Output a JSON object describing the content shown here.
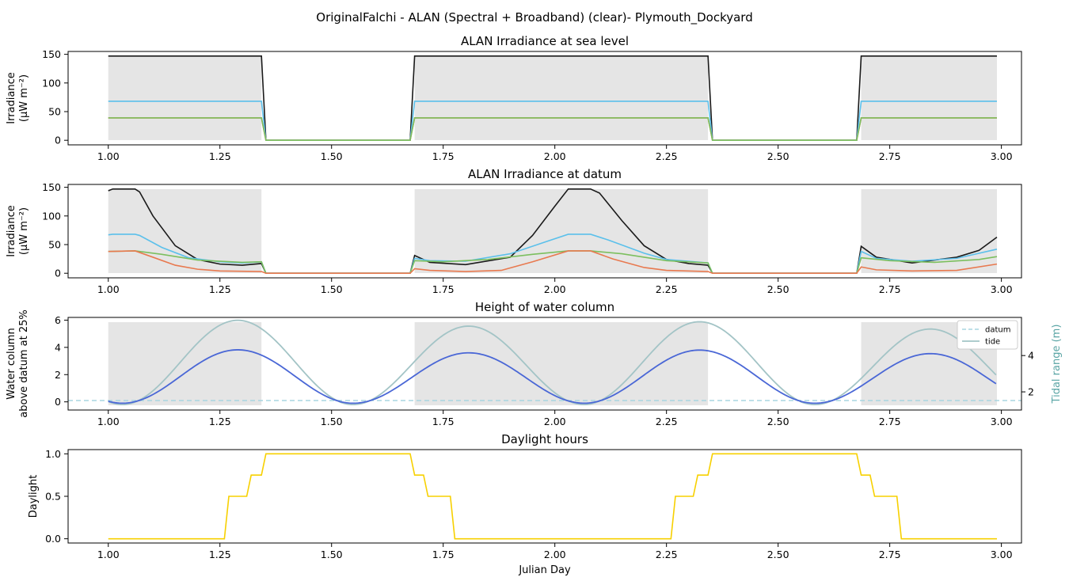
{
  "figure_title": "OriginalFalchi - ALAN (Spectral + Broadband) (clear)- Plymouth_Dockyard",
  "colors": {
    "black": "#1a1a1a",
    "blue": "#5bc0eb",
    "green": "#7cbf5f",
    "orange": "#e8794f",
    "water": "#4a67d6",
    "tide": "#a3c4c6",
    "datum": "#a8d5e0",
    "daylight": "#f7d000",
    "shade": "#e5e5e5",
    "right_axis": "#5aa5a5"
  },
  "chart_data": [
    {
      "type": "line",
      "title": "ALAN Irradiance at sea level",
      "ylabel_line1": "Irradiance",
      "ylabel_line2": "(μW m⁻²)",
      "xlim": [
        0.91,
        3.045
      ],
      "ylim": [
        -8,
        155
      ],
      "xticks": [
        "1.00",
        "1.25",
        "1.50",
        "1.75",
        "2.00",
        "2.25",
        "2.50",
        "2.75",
        "3.00"
      ],
      "xtick_values": [
        1.0,
        1.25,
        1.5,
        1.75,
        2.0,
        2.25,
        2.5,
        2.75,
        3.0
      ],
      "yticks": [
        "0",
        "50",
        "100",
        "150"
      ],
      "ytick_values": [
        0,
        50,
        100,
        150
      ],
      "shaded_x": [
        [
          1.0,
          1.343
        ],
        [
          1.686,
          2.343
        ],
        [
          2.686,
          2.99
        ]
      ],
      "series": [
        {
          "color_key": "black",
          "points": [
            [
              1.0,
              147
            ],
            [
              1.343,
              147
            ],
            [
              1.353,
              0
            ],
            [
              1.676,
              0
            ],
            [
              1.686,
              147
            ],
            [
              2.343,
              147
            ],
            [
              2.353,
              0
            ],
            [
              2.676,
              0
            ],
            [
              2.686,
              147
            ],
            [
              2.99,
              147
            ]
          ]
        },
        {
          "color_key": "blue",
          "points": [
            [
              1.0,
              68
            ],
            [
              1.343,
              68
            ],
            [
              1.353,
              0
            ],
            [
              1.676,
              0
            ],
            [
              1.686,
              68
            ],
            [
              2.343,
              68
            ],
            [
              2.353,
              0
            ],
            [
              2.676,
              0
            ],
            [
              2.686,
              68
            ],
            [
              2.99,
              68
            ]
          ]
        },
        {
          "color_key": "orange",
          "points": [
            [
              1.0,
              39
            ],
            [
              1.343,
              39
            ],
            [
              1.353,
              0
            ],
            [
              1.676,
              0
            ],
            [
              1.686,
              39
            ],
            [
              2.343,
              39
            ],
            [
              2.353,
              0
            ],
            [
              2.676,
              0
            ],
            [
              2.686,
              39
            ],
            [
              2.99,
              39
            ]
          ]
        },
        {
          "color_key": "green",
          "points": [
            [
              1.0,
              39
            ],
            [
              1.343,
              39
            ],
            [
              1.353,
              0
            ],
            [
              1.676,
              0
            ],
            [
              1.686,
              39
            ],
            [
              2.343,
              39
            ],
            [
              2.353,
              0
            ],
            [
              2.676,
              0
            ],
            [
              2.686,
              39
            ],
            [
              2.99,
              39
            ]
          ]
        }
      ]
    },
    {
      "type": "line",
      "title": "ALAN Irradiance at datum",
      "ylabel_line1": "Irradiance",
      "ylabel_line2": "(μW m⁻²)",
      "xlim": [
        0.91,
        3.045
      ],
      "ylim": [
        -8,
        155
      ],
      "xticks": [
        "1.00",
        "1.25",
        "1.50",
        "1.75",
        "2.00",
        "2.25",
        "2.50",
        "2.75",
        "3.00"
      ],
      "xtick_values": [
        1.0,
        1.25,
        1.5,
        1.75,
        2.0,
        2.25,
        2.5,
        2.75,
        3.0
      ],
      "yticks": [
        "0",
        "50",
        "100",
        "150"
      ],
      "ytick_values": [
        0,
        50,
        100,
        150
      ],
      "shaded_x": [
        [
          1.0,
          1.343
        ],
        [
          1.686,
          2.343
        ],
        [
          2.686,
          2.99
        ]
      ],
      "series": [
        {
          "color_key": "black",
          "points": [
            [
              1.0,
              144
            ],
            [
              1.01,
              147
            ],
            [
              1.06,
              147
            ],
            [
              1.07,
              142
            ],
            [
              1.1,
              100
            ],
            [
              1.15,
              48
            ],
            [
              1.2,
              24
            ],
            [
              1.25,
              16
            ],
            [
              1.3,
              14
            ],
            [
              1.343,
              17
            ],
            [
              1.353,
              0
            ],
            [
              1.676,
              0
            ],
            [
              1.686,
              31
            ],
            [
              1.72,
              19
            ],
            [
              1.8,
              15
            ],
            [
              1.9,
              28
            ],
            [
              1.95,
              66
            ],
            [
              2.0,
              117
            ],
            [
              2.03,
              147
            ],
            [
              2.08,
              147
            ],
            [
              2.1,
              140
            ],
            [
              2.15,
              92
            ],
            [
              2.2,
              48
            ],
            [
              2.25,
              24
            ],
            [
              2.3,
              17
            ],
            [
              2.343,
              14
            ],
            [
              2.353,
              0
            ],
            [
              2.676,
              0
            ],
            [
              2.686,
              47
            ],
            [
              2.72,
              28
            ],
            [
              2.8,
              18
            ],
            [
              2.9,
              28
            ],
            [
              2.95,
              40
            ],
            [
              2.99,
              63
            ]
          ]
        },
        {
          "color_key": "blue",
          "points": [
            [
              1.0,
              67
            ],
            [
              1.01,
              68
            ],
            [
              1.06,
              68
            ],
            [
              1.07,
              66
            ],
            [
              1.12,
              45
            ],
            [
              1.18,
              27
            ],
            [
              1.25,
              20
            ],
            [
              1.3,
              18
            ],
            [
              1.343,
              20
            ],
            [
              1.353,
              0
            ],
            [
              1.676,
              0
            ],
            [
              1.686,
              26
            ],
            [
              1.72,
              22
            ],
            [
              1.8,
              21
            ],
            [
              1.9,
              34
            ],
            [
              1.98,
              55
            ],
            [
              2.03,
              68
            ],
            [
              2.08,
              68
            ],
            [
              2.12,
              58
            ],
            [
              2.2,
              35
            ],
            [
              2.25,
              24
            ],
            [
              2.343,
              18
            ],
            [
              2.353,
              0
            ],
            [
              2.676,
              0
            ],
            [
              2.686,
              38
            ],
            [
              2.72,
              26
            ],
            [
              2.8,
              21
            ],
            [
              2.9,
              26
            ],
            [
              2.99,
              42
            ]
          ]
        },
        {
          "color_key": "green",
          "points": [
            [
              1.0,
              38
            ],
            [
              1.06,
              39
            ],
            [
              1.12,
              33
            ],
            [
              1.2,
              23
            ],
            [
              1.3,
              19
            ],
            [
              1.343,
              20
            ],
            [
              1.353,
              0
            ],
            [
              1.676,
              0
            ],
            [
              1.686,
              22
            ],
            [
              1.75,
              20
            ],
            [
              1.85,
              24
            ],
            [
              1.95,
              33
            ],
            [
              2.03,
              39
            ],
            [
              2.08,
              39
            ],
            [
              2.15,
              34
            ],
            [
              2.25,
              22
            ],
            [
              2.343,
              18
            ],
            [
              2.353,
              0
            ],
            [
              2.676,
              0
            ],
            [
              2.686,
              27
            ],
            [
              2.75,
              22
            ],
            [
              2.85,
              19
            ],
            [
              2.95,
              24
            ],
            [
              2.99,
              29
            ]
          ]
        },
        {
          "color_key": "orange",
          "points": [
            [
              1.0,
              38
            ],
            [
              1.06,
              39
            ],
            [
              1.1,
              28
            ],
            [
              1.15,
              14
            ],
            [
              1.2,
              7
            ],
            [
              1.25,
              4
            ],
            [
              1.343,
              3
            ],
            [
              1.353,
              0
            ],
            [
              1.676,
              0
            ],
            [
              1.686,
              8
            ],
            [
              1.72,
              5
            ],
            [
              1.8,
              3
            ],
            [
              1.88,
              5
            ],
            [
              1.95,
              20
            ],
            [
              2.03,
              39
            ],
            [
              2.08,
              39
            ],
            [
              2.13,
              25
            ],
            [
              2.2,
              10
            ],
            [
              2.25,
              5
            ],
            [
              2.343,
              3
            ],
            [
              2.353,
              0
            ],
            [
              2.676,
              0
            ],
            [
              2.686,
              11
            ],
            [
              2.72,
              6
            ],
            [
              2.8,
              4
            ],
            [
              2.9,
              5
            ],
            [
              2.99,
              16
            ]
          ]
        }
      ]
    },
    {
      "type": "line",
      "title": "Height of water column",
      "ylabel_line1": "Water column",
      "ylabel_line2": "above datum at 25%",
      "right_ylabel": "Tidal range (m)",
      "xlim": [
        0.91,
        3.045
      ],
      "ylim": [
        -0.6,
        6.2
      ],
      "right_ylim": [
        1.0,
        6.1
      ],
      "xticks": [
        "1.00",
        "1.25",
        "1.50",
        "1.75",
        "2.00",
        "2.25",
        "2.50",
        "2.75",
        "3.00"
      ],
      "xtick_values": [
        1.0,
        1.25,
        1.5,
        1.75,
        2.0,
        2.25,
        2.5,
        2.75,
        3.0
      ],
      "yticks": [
        "0",
        "2",
        "4",
        "6"
      ],
      "ytick_values": [
        0,
        2,
        4,
        6
      ],
      "right_yticks": [
        "2",
        "4"
      ],
      "right_ytick_values": [
        2,
        4
      ],
      "shaded_x": [
        [
          1.0,
          1.343
        ],
        [
          1.686,
          2.343
        ],
        [
          2.686,
          2.99
        ]
      ],
      "datum_y": 0.1,
      "legend": [
        "datum",
        "tide"
      ],
      "legend_position": "top-right",
      "water_series": {
        "color_key": "water",
        "amplitude": [
          1.96,
          1.85,
          1.95,
          1.82
        ],
        "period": 0.517,
        "peak_x": 1.29
      },
      "tide_series": {
        "color_key": "tide",
        "amplitude": [
          2.9,
          2.7,
          2.85,
          2.6
        ],
        "period": 0.517,
        "peak_x": 1.29
      }
    },
    {
      "type": "line",
      "title": "Daylight hours",
      "ylabel_line1": "Daylight",
      "xlabel": "Julian Day",
      "xlim": [
        0.91,
        3.045
      ],
      "ylim": [
        -0.05,
        1.05
      ],
      "xticks": [
        "1.00",
        "1.25",
        "1.50",
        "1.75",
        "2.00",
        "2.25",
        "2.50",
        "2.75",
        "3.00"
      ],
      "xtick_values": [
        1.0,
        1.25,
        1.5,
        1.75,
        2.0,
        2.25,
        2.5,
        2.75,
        3.0
      ],
      "yticks": [
        "0.0",
        "0.5",
        "1.0"
      ],
      "ytick_values": [
        0.0,
        0.5,
        1.0
      ],
      "series": [
        {
          "color_key": "daylight",
          "points": [
            [
              1.0,
              0
            ],
            [
              1.26,
              0
            ],
            [
              1.27,
              0.5
            ],
            [
              1.31,
              0.5
            ],
            [
              1.32,
              0.75
            ],
            [
              1.343,
              0.75
            ],
            [
              1.353,
              1.0
            ],
            [
              1.676,
              1.0
            ],
            [
              1.686,
              0.75
            ],
            [
              1.706,
              0.75
            ],
            [
              1.716,
              0.5
            ],
            [
              1.766,
              0.5
            ],
            [
              1.776,
              0
            ],
            [
              2.26,
              0
            ],
            [
              2.27,
              0.5
            ],
            [
              2.31,
              0.5
            ],
            [
              2.32,
              0.75
            ],
            [
              2.343,
              0.75
            ],
            [
              2.353,
              1.0
            ],
            [
              2.676,
              1.0
            ],
            [
              2.686,
              0.75
            ],
            [
              2.706,
              0.75
            ],
            [
              2.716,
              0.5
            ],
            [
              2.766,
              0.5
            ],
            [
              2.776,
              0
            ],
            [
              2.99,
              0
            ]
          ]
        }
      ]
    }
  ]
}
